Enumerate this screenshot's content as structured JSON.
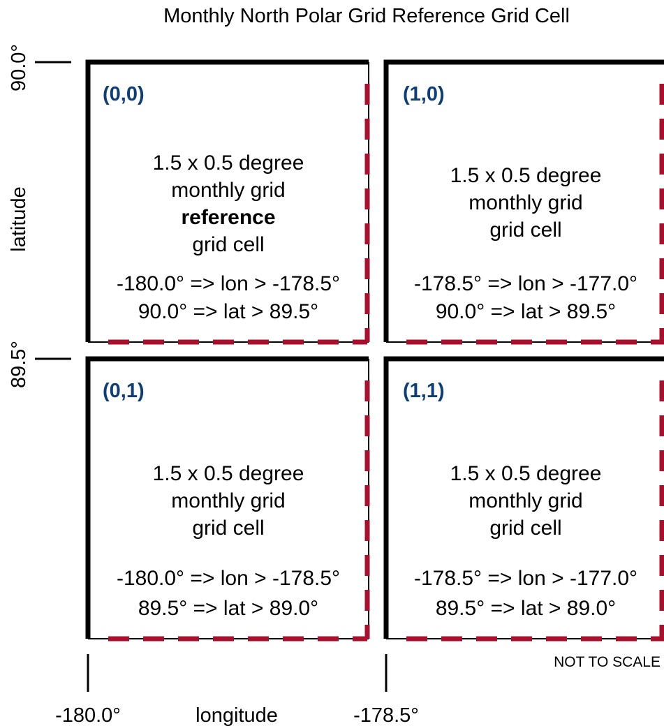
{
  "title": "Monthly North Polar Grid Reference Grid Cell",
  "axes": {
    "y_label": "latitude",
    "x_label": "longitude",
    "y_ticks": [
      "90.0°",
      "89.5°"
    ],
    "x_ticks": [
      "-180.0°",
      "-178.5°"
    ]
  },
  "note": "NOT TO SCALE",
  "colors": {
    "cell_id": "#0d3e7a",
    "dash": "#a8102e",
    "border": "#000000"
  },
  "cells": [
    {
      "id": "(0,0)",
      "line1": "1.5 x 0.5 degree",
      "line2": "monthly grid",
      "emphasis": "reference",
      "line3": "grid cell",
      "lon_range": "-180.0° => lon > -178.5°",
      "lat_range": "90.0° => lat >  89.5°"
    },
    {
      "id": "(1,0)",
      "line1": "1.5 x 0.5 degree",
      "line2": "monthly grid",
      "line3": "grid cell",
      "lon_range": "-178.5° => lon > -177.0°",
      "lat_range": "90.0° => lat >  89.5°"
    },
    {
      "id": "(0,1)",
      "line1": "1.5 x 0.5 degree",
      "line2": "monthly grid",
      "line3": "grid cell",
      "lon_range": "-180.0° => lon > -178.5°",
      "lat_range": "89.5° => lat >  89.0°"
    },
    {
      "id": "(1,1)",
      "line1": "1.5 x 0.5 degree",
      "line2": "monthly grid",
      "line3": "grid cell",
      "lon_range": "-178.5° => lon > -177.0°",
      "lat_range": "89.5° => lat >  89.0°"
    }
  ]
}
